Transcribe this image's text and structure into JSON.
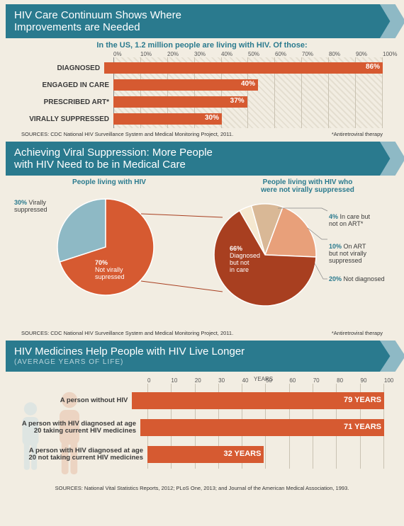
{
  "colors": {
    "bg": "#f2ede2",
    "banner": "#2a7a8e",
    "banner_tip": "#8eb9c5",
    "bar": "#d65a31",
    "bar_dark": "#a83f20",
    "pie_blue": "#8eb9c5",
    "pie_orange": "#d65a31",
    "pie_darkred": "#a83f20",
    "pie_peach": "#e8a07a",
    "pie_tan": "#d9b896",
    "pie_cream": "#f5e8d0",
    "text": "#3a3a3a"
  },
  "sec1": {
    "title": "HIV Care Continuum Shows Where\nImprovements are Needed",
    "subtitle": "In the US, 1.2 million people are living with HIV.  Of those:",
    "axis_ticks": [
      "0%",
      "10%",
      "20%",
      "30%",
      "40%",
      "50%",
      "60%",
      "70%",
      "80%",
      "90%",
      "100%"
    ],
    "bars": [
      {
        "label": "DIAGNOSED",
        "pct": 86,
        "disp": "86%"
      },
      {
        "label": "ENGAGED IN CARE",
        "pct": 40,
        "disp": "40%"
      },
      {
        "label": "PRESCRIBED ART*",
        "pct": 37,
        "disp": "37%"
      },
      {
        "label": "VIRALLY SUPPRESSED",
        "pct": 30,
        "disp": "30%"
      }
    ],
    "source": "SOURCES: CDC National HIV Surveillance System and Medical Monitoring Project, 2011.",
    "footnote": "*Antiretroviral therapy"
  },
  "sec2": {
    "title": "Achieving Viral Suppression: More People\nwith HIV Need to be in Medical Care",
    "left_title": "People living with HIV",
    "right_title": "People living with HIV who\nwere not virally suppressed",
    "left_pie": [
      {
        "label": "Virally\nsuppressed",
        "pct": 30,
        "disp": "30%",
        "color": "#8eb9c5"
      },
      {
        "label": "Not virally\nsupressed",
        "pct": 70,
        "disp": "70%",
        "color": "#d65a31"
      }
    ],
    "right_pie": [
      {
        "label": "Diagnosed\nbut not\nin care",
        "pct": 66,
        "disp": "66%",
        "color": "#a83f20"
      },
      {
        "label": "In care but\nnot on ART*",
        "pct": 4,
        "disp": "4%",
        "color": "#f5e8d0"
      },
      {
        "label": "On ART\nbut not virally\nsuppressed",
        "pct": 10,
        "disp": "10%",
        "color": "#d9b896"
      },
      {
        "label": "Not diagnosed",
        "pct": 20,
        "disp": "20%",
        "color": "#e8a07a"
      }
    ],
    "source": "SOURCES: CDC National HIV Surveillance System and Medical Monitoring Project, 2011.",
    "footnote": "*Antiretroviral therapy"
  },
  "sec3": {
    "title": "HIV Medicines Help People with HIV Live Longer",
    "subtitle": "(AVERAGE YEARS OF LIFE)",
    "axis_title": "YEARS",
    "axis_ticks": [
      "0",
      "10",
      "20",
      "30",
      "40",
      "50",
      "60",
      "70",
      "80",
      "90",
      "100"
    ],
    "bars": [
      {
        "label": "A person without HIV",
        "val": 79,
        "disp": "79 YEARS"
      },
      {
        "label": "A person with HIV diagnosed at age\n20 taking current HIV medicines",
        "val": 71,
        "disp": "71 YEARS"
      },
      {
        "label": "A person with HIV diagnosed at age\n20 not taking current HIV medicines",
        "val": 32,
        "disp": "32 YEARS"
      }
    ],
    "source": "SOURCES: National Vital Statistics Reports, 2012; PLoS One, 2013; and Journal of the American Medical Association, 1993."
  }
}
